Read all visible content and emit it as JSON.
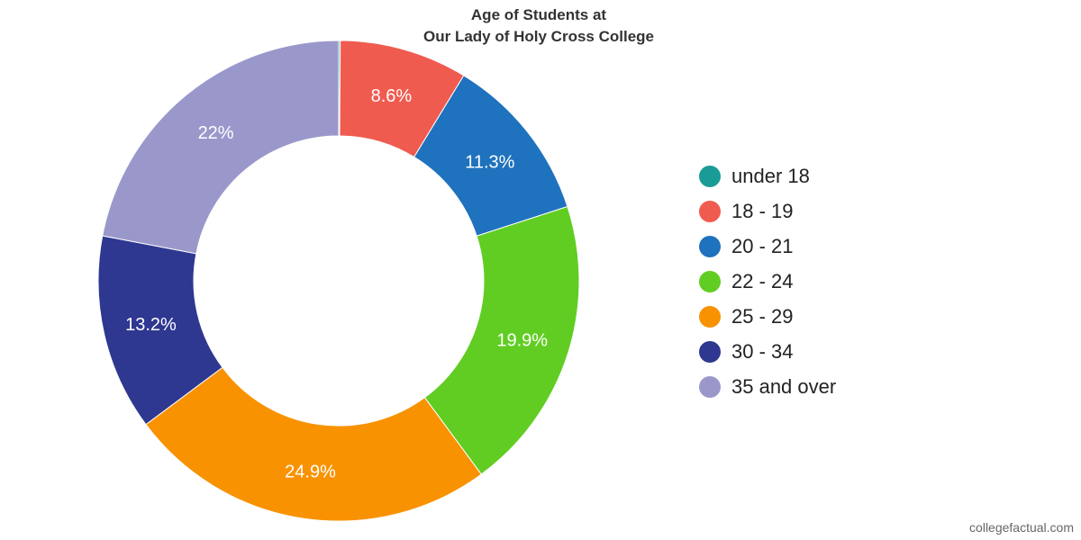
{
  "chart_data": {
    "type": "pie",
    "title": "Age of Students at\nOur Lady of Holy Cross College",
    "title_lines": [
      "Age of Students at",
      "Our Lady of Holy Cross College"
    ],
    "donut": true,
    "legend_position": "right",
    "series": [
      {
        "name": "under 18",
        "value": 0.1,
        "label": "",
        "color": "#1a9b96"
      },
      {
        "name": "18 - 19",
        "value": 8.6,
        "label": "8.6%",
        "color": "#f05b4f"
      },
      {
        "name": "20 - 21",
        "value": 11.3,
        "label": "11.3%",
        "color": "#1f72bd"
      },
      {
        "name": "22 - 24",
        "value": 19.9,
        "label": "19.9%",
        "color": "#61cd22"
      },
      {
        "name": "25 - 29",
        "value": 24.9,
        "label": "24.9%",
        "color": "#f89200"
      },
      {
        "name": "30 - 34",
        "value": 13.2,
        "label": "13.2%",
        "color": "#2e3890"
      },
      {
        "name": "35 and over",
        "value": 22,
        "label": "22%",
        "color": "#9a98cb"
      }
    ]
  },
  "watermark": "collegefactual.com"
}
